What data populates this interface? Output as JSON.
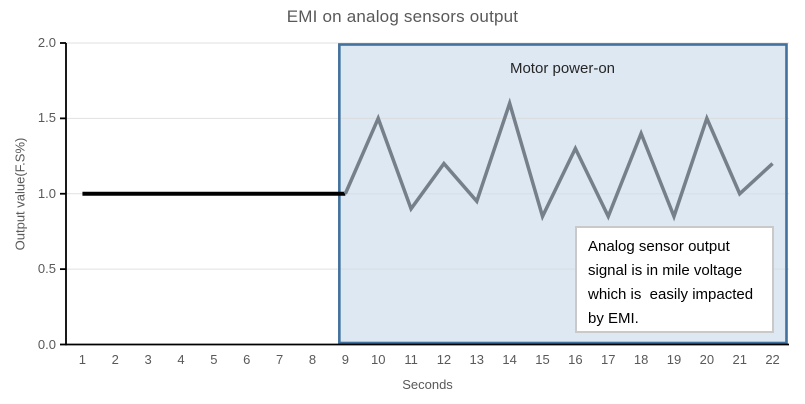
{
  "title": "EMI on analog sensors output",
  "region_label": "Motor power-on",
  "annotation": {
    "lines": [
      "Analog sensor output",
      "signal is in mile voltage",
      "which is  easily impacted",
      "by EMI."
    ]
  },
  "chart_data": {
    "type": "line",
    "title": "EMI on analog sensors output",
    "xlabel": "Seconds",
    "ylabel": "Output value(F.S%)",
    "x_ticks": [
      1,
      2,
      3,
      4,
      5,
      6,
      7,
      8,
      9,
      10,
      11,
      12,
      13,
      14,
      15,
      16,
      17,
      18,
      19,
      20,
      21,
      22
    ],
    "y_ticks": [
      0.0,
      0.5,
      1.0,
      1.5,
      2.0
    ],
    "y_tick_labels": [
      "0.0",
      "0.5",
      "1.0",
      "1.5",
      "2.0"
    ],
    "ylim": [
      0,
      2
    ],
    "grid": "horizontal",
    "legend": "none",
    "series": [
      {
        "x": [
          1,
          2,
          3,
          4,
          5,
          6,
          7,
          8,
          9
        ],
        "y": [
          1.0,
          1.0,
          1.0,
          1.0,
          1.0,
          1.0,
          1.0,
          1.0,
          1.0
        ],
        "color": "#000000",
        "width": 4
      },
      {
        "x": [
          9,
          10,
          11,
          12,
          13,
          14,
          15,
          16,
          17,
          18,
          19,
          20,
          21,
          22
        ],
        "y": [
          1.0,
          1.5,
          0.9,
          1.2,
          0.95,
          1.6,
          0.85,
          1.3,
          0.85,
          1.4,
          0.85,
          1.5,
          1.0,
          1.2
        ],
        "color": "#76808b",
        "width": 3.5
      }
    ],
    "region": {
      "label": "Motor power-on",
      "x_start": 9,
      "x_end": 22.5,
      "fill": "#d7e4f1",
      "fill_opacity": 0.85,
      "border": "#41719c"
    },
    "annotation_text": "Analog sensor output signal is in mile voltage which is  easily impacted by EMI."
  },
  "colors": {
    "gridline": "#d9d9d9",
    "axis": "#000000",
    "text_gray": "#595959",
    "label_dark": "#262626"
  }
}
